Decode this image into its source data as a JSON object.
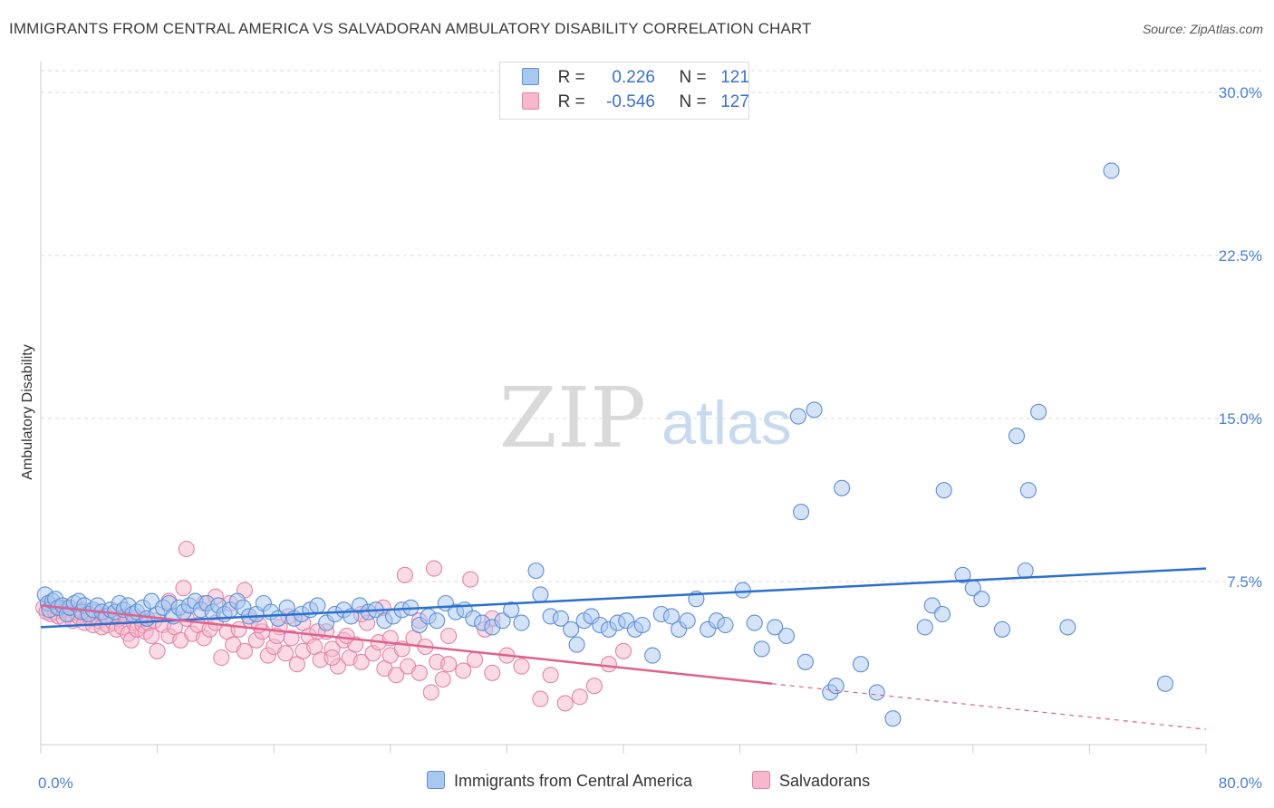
{
  "title": "IMMIGRANTS FROM CENTRAL AMERICA VS SALVADORAN AMBULATORY DISABILITY CORRELATION CHART",
  "source": "Source: ZipAtlas.com",
  "watermark": {
    "zip": "ZIP",
    "atlas": "atlas"
  },
  "legend": {
    "rows": [
      {
        "r_label": "R =",
        "r_value": "0.226",
        "n_label": "N =",
        "n_value": "121"
      },
      {
        "r_label": "R =",
        "r_value": "-0.546",
        "n_label": "N =",
        "n_value": "127"
      }
    ]
  },
  "bottom_legend": {
    "series1": "Immigrants from Central America",
    "series2": "Salvadorans"
  },
  "colors": {
    "blue_fill": "#a9c8f0",
    "blue_stroke": "#5b8fd8",
    "blue_line": "#2b6fd0",
    "pink_fill": "#f6b8cc",
    "pink_stroke": "#e483a6",
    "pink_line": "#e0608e",
    "grid": "#d9d9d9",
    "axis_text": "#4a7fd6"
  },
  "chart_data": {
    "type": "scatter",
    "title": "IMMIGRANTS FROM CENTRAL AMERICA VS SALVADORAN AMBULATORY DISABILITY CORRELATION CHART",
    "xlabel": "",
    "ylabel": "Ambulatory Disability",
    "xlim": [
      0,
      80
    ],
    "ylim": [
      0,
      31
    ],
    "x_tick_labels": [
      "0.0%",
      "80.0%"
    ],
    "y_ticks": [
      7.5,
      15.0,
      22.5,
      30.0
    ],
    "y_tick_labels": [
      "7.5%",
      "15.0%",
      "22.5%",
      "30.0%"
    ],
    "series": [
      {
        "name": "Immigrants from Central America",
        "r": 0.226,
        "n": 121,
        "trend": {
          "x0": 0,
          "y0": 5.4,
          "x1": 80,
          "y1": 8.1
        },
        "points": [
          [
            0.3,
            6.9
          ],
          [
            0.5,
            6.5
          ],
          [
            0.6,
            6.2
          ],
          [
            0.8,
            6.6
          ],
          [
            1.0,
            6.7
          ],
          [
            1.2,
            6.3
          ],
          [
            1.5,
            6.4
          ],
          [
            1.8,
            6.0
          ],
          [
            2.0,
            6.3
          ],
          [
            2.3,
            6.5
          ],
          [
            2.6,
            6.6
          ],
          [
            2.8,
            6.1
          ],
          [
            3.0,
            6.4
          ],
          [
            3.3,
            6.0
          ],
          [
            3.6,
            6.2
          ],
          [
            3.9,
            6.4
          ],
          [
            4.2,
            6.1
          ],
          [
            4.5,
            5.9
          ],
          [
            4.8,
            6.2
          ],
          [
            5.1,
            6.1
          ],
          [
            5.4,
            6.5
          ],
          [
            5.7,
            6.2
          ],
          [
            6.0,
            6.4
          ],
          [
            6.3,
            6.0
          ],
          [
            6.6,
            6.1
          ],
          [
            7.0,
            6.3
          ],
          [
            7.3,
            5.8
          ],
          [
            7.6,
            6.6
          ],
          [
            8.0,
            6.0
          ],
          [
            8.4,
            6.3
          ],
          [
            8.8,
            6.5
          ],
          [
            9.1,
            5.9
          ],
          [
            9.5,
            6.3
          ],
          [
            9.8,
            6.1
          ],
          [
            10.2,
            6.4
          ],
          [
            10.6,
            6.6
          ],
          [
            11.0,
            6.2
          ],
          [
            11.4,
            6.5
          ],
          [
            11.8,
            6.1
          ],
          [
            12.2,
            6.4
          ],
          [
            12.6,
            6.0
          ],
          [
            13.0,
            6.2
          ],
          [
            13.5,
            6.6
          ],
          [
            13.9,
            6.3
          ],
          [
            14.3,
            5.9
          ],
          [
            14.8,
            6.0
          ],
          [
            15.3,
            6.5
          ],
          [
            15.8,
            6.1
          ],
          [
            16.3,
            5.8
          ],
          [
            16.9,
            6.3
          ],
          [
            17.4,
            5.8
          ],
          [
            17.9,
            6.0
          ],
          [
            18.5,
            6.2
          ],
          [
            19.0,
            6.4
          ],
          [
            19.6,
            5.6
          ],
          [
            20.2,
            6.0
          ],
          [
            20.8,
            6.2
          ],
          [
            21.3,
            5.9
          ],
          [
            21.9,
            6.4
          ],
          [
            22.5,
            6.1
          ],
          [
            23.0,
            6.2
          ],
          [
            23.6,
            5.7
          ],
          [
            24.2,
            5.9
          ],
          [
            24.8,
            6.2
          ],
          [
            25.4,
            6.3
          ],
          [
            26.0,
            5.5
          ],
          [
            26.6,
            5.9
          ],
          [
            27.2,
            5.7
          ],
          [
            27.8,
            6.5
          ],
          [
            28.5,
            6.1
          ],
          [
            29.1,
            6.2
          ],
          [
            29.7,
            5.8
          ],
          [
            30.3,
            5.6
          ],
          [
            31.0,
            5.4
          ],
          [
            31.7,
            5.7
          ],
          [
            32.3,
            6.2
          ],
          [
            33.0,
            5.6
          ],
          [
            34.0,
            8.0
          ],
          [
            34.3,
            6.9
          ],
          [
            35.0,
            5.9
          ],
          [
            35.7,
            5.8
          ],
          [
            36.4,
            5.3
          ],
          [
            36.8,
            4.6
          ],
          [
            37.3,
            5.7
          ],
          [
            37.8,
            5.9
          ],
          [
            38.4,
            5.5
          ],
          [
            39.0,
            5.3
          ],
          [
            39.6,
            5.6
          ],
          [
            40.2,
            5.7
          ],
          [
            40.8,
            5.3
          ],
          [
            41.3,
            5.5
          ],
          [
            42.0,
            4.1
          ],
          [
            42.6,
            6.0
          ],
          [
            43.3,
            5.9
          ],
          [
            43.8,
            5.3
          ],
          [
            44.4,
            5.7
          ],
          [
            45.0,
            6.7
          ],
          [
            45.8,
            5.3
          ],
          [
            46.4,
            5.7
          ],
          [
            47.0,
            5.5
          ],
          [
            48.2,
            7.1
          ],
          [
            49.0,
            5.6
          ],
          [
            49.5,
            4.4
          ],
          [
            50.4,
            5.4
          ],
          [
            51.2,
            5.0
          ],
          [
            52.0,
            15.1
          ],
          [
            52.2,
            10.7
          ],
          [
            52.5,
            3.8
          ],
          [
            53.1,
            15.4
          ],
          [
            54.2,
            2.4
          ],
          [
            54.6,
            2.7
          ],
          [
            55.0,
            11.8
          ],
          [
            56.3,
            3.7
          ],
          [
            57.4,
            2.4
          ],
          [
            58.5,
            1.2
          ],
          [
            60.7,
            5.4
          ],
          [
            61.2,
            6.4
          ],
          [
            61.9,
            6.0
          ],
          [
            62.0,
            11.7
          ],
          [
            63.3,
            7.8
          ],
          [
            64.0,
            7.2
          ],
          [
            64.6,
            6.7
          ],
          [
            66.0,
            5.3
          ],
          [
            67.0,
            14.2
          ],
          [
            67.6,
            8.0
          ],
          [
            67.8,
            11.7
          ],
          [
            68.5,
            15.3
          ],
          [
            70.5,
            5.4
          ],
          [
            73.5,
            26.4
          ],
          [
            77.2,
            2.8
          ]
        ]
      },
      {
        "name": "Salvadorans",
        "r": -0.546,
        "n": 127,
        "trend": {
          "x0": 0,
          "y0": 6.4,
          "x1": 50.2,
          "y1": 2.8,
          "dash_x1": 80,
          "dash_y1": 0.7
        },
        "points": [
          [
            0.2,
            6.3
          ],
          [
            0.4,
            6.1
          ],
          [
            0.5,
            6.5
          ],
          [
            0.7,
            6.0
          ],
          [
            0.9,
            6.4
          ],
          [
            1.0,
            6.1
          ],
          [
            1.2,
            5.9
          ],
          [
            1.4,
            6.2
          ],
          [
            1.6,
            5.8
          ],
          [
            1.8,
            6.3
          ],
          [
            2.0,
            6.0
          ],
          [
            2.2,
            5.7
          ],
          [
            2.4,
            6.1
          ],
          [
            2.6,
            5.9
          ],
          [
            2.8,
            6.2
          ],
          [
            3.0,
            5.6
          ],
          [
            3.2,
            6.0
          ],
          [
            3.4,
            5.8
          ],
          [
            3.6,
            5.5
          ],
          [
            3.8,
            6.1
          ],
          [
            4.0,
            5.7
          ],
          [
            4.2,
            5.4
          ],
          [
            4.4,
            5.9
          ],
          [
            4.6,
            5.5
          ],
          [
            4.8,
            6.0
          ],
          [
            5.0,
            5.6
          ],
          [
            5.2,
            5.3
          ],
          [
            5.4,
            5.8
          ],
          [
            5.6,
            5.4
          ],
          [
            5.8,
            5.9
          ],
          [
            6.0,
            5.1
          ],
          [
            6.2,
            4.8
          ],
          [
            6.4,
            5.6
          ],
          [
            6.6,
            5.3
          ],
          [
            6.8,
            5.8
          ],
          [
            7.0,
            5.5
          ],
          [
            7.2,
            5.2
          ],
          [
            7.4,
            5.6
          ],
          [
            7.6,
            5.0
          ],
          [
            7.8,
            5.7
          ],
          [
            8.0,
            4.3
          ],
          [
            8.4,
            5.5
          ],
          [
            8.8,
            5.0
          ],
          [
            9.2,
            5.4
          ],
          [
            9.6,
            4.8
          ],
          [
            10.0,
            5.8
          ],
          [
            10.4,
            5.1
          ],
          [
            10.8,
            5.5
          ],
          [
            11.2,
            4.9
          ],
          [
            11.6,
            5.3
          ],
          [
            12.0,
            5.6
          ],
          [
            12.4,
            4.0
          ],
          [
            12.8,
            5.2
          ],
          [
            13.2,
            4.6
          ],
          [
            13.6,
            5.3
          ],
          [
            14.0,
            4.3
          ],
          [
            14.4,
            5.7
          ],
          [
            14.8,
            4.8
          ],
          [
            15.2,
            5.2
          ],
          [
            15.6,
            4.1
          ],
          [
            16.0,
            4.5
          ],
          [
            16.4,
            5.4
          ],
          [
            16.8,
            4.2
          ],
          [
            17.2,
            4.9
          ],
          [
            17.6,
            3.7
          ],
          [
            18.0,
            4.3
          ],
          [
            18.4,
            5.0
          ],
          [
            18.8,
            4.5
          ],
          [
            19.2,
            3.9
          ],
          [
            19.6,
            5.2
          ],
          [
            20.0,
            4.4
          ],
          [
            20.4,
            3.6
          ],
          [
            20.8,
            4.8
          ],
          [
            21.2,
            4.0
          ],
          [
            21.6,
            4.6
          ],
          [
            22.0,
            3.8
          ],
          [
            22.4,
            5.6
          ],
          [
            22.8,
            4.2
          ],
          [
            23.2,
            4.7
          ],
          [
            23.6,
            3.5
          ],
          [
            24.0,
            4.1
          ],
          [
            24.4,
            3.2
          ],
          [
            24.8,
            4.4
          ],
          [
            25.2,
            3.6
          ],
          [
            25.6,
            4.9
          ],
          [
            26.0,
            3.3
          ],
          [
            26.4,
            4.5
          ],
          [
            26.8,
            2.4
          ],
          [
            27.2,
            3.8
          ],
          [
            27.6,
            3.0
          ],
          [
            28.0,
            3.7
          ],
          [
            29.0,
            3.4
          ],
          [
            29.8,
            3.9
          ],
          [
            30.5,
            5.3
          ],
          [
            31.0,
            3.3
          ],
          [
            32.0,
            4.1
          ],
          [
            33.0,
            3.6
          ],
          [
            34.3,
            2.1
          ],
          [
            35.0,
            3.2
          ],
          [
            36.0,
            1.9
          ],
          [
            37.0,
            2.2
          ],
          [
            38.0,
            2.7
          ],
          [
            39.0,
            3.7
          ],
          [
            40.0,
            4.3
          ],
          [
            25.0,
            7.8
          ],
          [
            27.0,
            8.1
          ],
          [
            29.5,
            7.6
          ],
          [
            20.0,
            4.0
          ],
          [
            18.0,
            5.6
          ],
          [
            16.2,
            5.0
          ],
          [
            14.0,
            7.1
          ],
          [
            13.0,
            6.5
          ],
          [
            11.2,
            6.5
          ],
          [
            10.0,
            9.0
          ],
          [
            9.8,
            7.2
          ],
          [
            12.0,
            6.8
          ],
          [
            8.8,
            6.6
          ],
          [
            22.0,
            6.0
          ],
          [
            23.5,
            6.3
          ],
          [
            15.0,
            5.5
          ],
          [
            17.0,
            5.9
          ],
          [
            19.0,
            5.2
          ],
          [
            21.0,
            5.0
          ],
          [
            24.0,
            4.9
          ],
          [
            26.0,
            5.7
          ],
          [
            28.0,
            5.0
          ],
          [
            31.0,
            5.8
          ]
        ]
      }
    ]
  }
}
